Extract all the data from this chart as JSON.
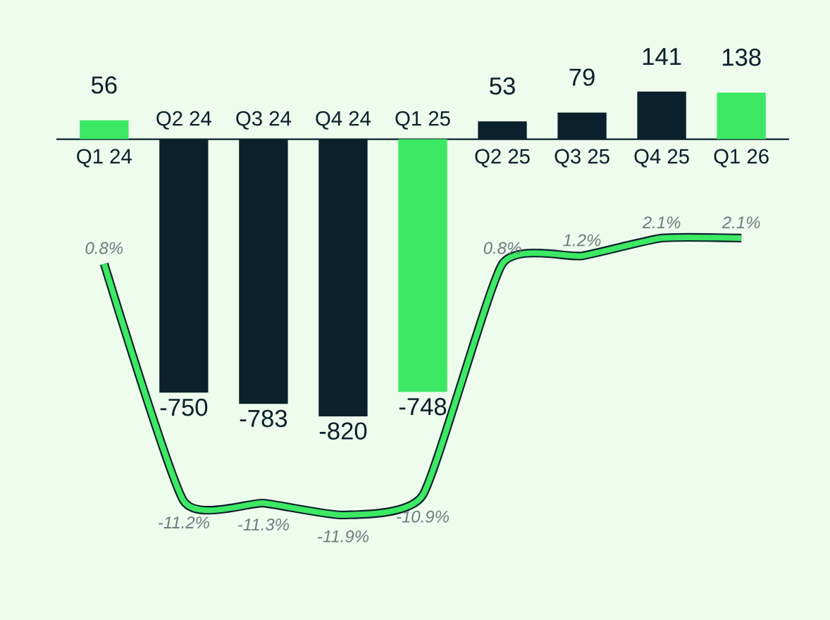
{
  "chart_data": {
    "type": "bar",
    "categories": [
      "Q1 24",
      "Q2 24",
      "Q3 24",
      "Q4 24",
      "Q1 25",
      "Q2 25",
      "Q3 25",
      "Q4 25",
      "Q1 26"
    ],
    "series": [
      {
        "colors": [
          "#3ce864",
          "#0a202c",
          "#0a202c",
          "#0a202c",
          "#3ce864",
          "#0a202c",
          "#0a202c",
          "#0a202c",
          "#3ce864"
        ],
        "values": [
          56,
          -750,
          -783,
          -820,
          -748,
          53,
          79,
          141,
          138
        ]
      },
      {
        "type": "line",
        "axis": "y2",
        "color": "#3ce864",
        "values": [
          0.8,
          -11.2,
          -11.3,
          -11.9,
          -10.9,
          0.8,
          1.2,
          2.1,
          2.1
        ],
        "value_labels": [
          "0.8%",
          "-11.2%",
          "-11.3%",
          "-11.9%",
          "-10.9%",
          "0.8%",
          "1.2%",
          "2.1%",
          "2.1%"
        ]
      }
    ],
    "data_labels": true
  }
}
